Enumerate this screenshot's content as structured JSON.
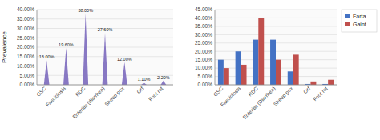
{
  "chart_data": [
    {
      "type": "bar",
      "categories": [
        "GSC",
        "Fasciolosis",
        "RDC",
        "Enteritis (diarrhea)",
        "Sheep pox",
        "Orf",
        "Foot rot"
      ],
      "values": [
        13.0,
        19.6,
        38.0,
        27.6,
        12.0,
        1.1,
        2.2
      ],
      "value_labels": [
        "13.00%",
        "19.60%",
        "38.00%",
        "27.60%",
        "12.00%",
        "1.10%",
        "2.20%"
      ],
      "data_labels": true,
      "color": "#8878C3",
      "ylabel": "Prevalence",
      "ylim": [
        0,
        40
      ],
      "yticks": [
        {
          "value": 0,
          "label": "0.00%"
        },
        {
          "value": 5,
          "label": "5.00%"
        },
        {
          "value": 10,
          "label": "10.00%"
        },
        {
          "value": 15,
          "label": "15.00%"
        },
        {
          "value": 20,
          "label": "20.00%"
        },
        {
          "value": 25,
          "label": "25.00%"
        },
        {
          "value": 30,
          "label": "30.00%"
        },
        {
          "value": 35,
          "label": "35.00%"
        },
        {
          "value": 40,
          "label": "40.00%"
        }
      ],
      "grid": true
    },
    {
      "type": "bar",
      "categories": [
        "GSC",
        "Fasciolosis",
        "RDC",
        "Enteritis (Diarrhea)",
        "Sheep pox",
        "Orf",
        "Foot rot"
      ],
      "series": [
        {
          "name": "Farta",
          "color": "#4472C4",
          "values": [
            15.0,
            20.0,
            27.0,
            27.0,
            8.0,
            0.5,
            0.5
          ]
        },
        {
          "name": "Gaint",
          "color": "#C0504D",
          "values": [
            10.0,
            12.0,
            40.0,
            15.0,
            18.0,
            2.0,
            3.0
          ]
        }
      ],
      "ylim": [
        0,
        45
      ],
      "yticks": [
        {
          "value": 0,
          "label": "0.00%"
        },
        {
          "value": 5,
          "label": "5.00%"
        },
        {
          "value": 10,
          "label": "10.00%"
        },
        {
          "value": 15,
          "label": "15.00%"
        },
        {
          "value": 20,
          "label": "20.00%"
        },
        {
          "value": 25,
          "label": "25.00%"
        },
        {
          "value": 30,
          "label": "30.00%"
        },
        {
          "value": 35,
          "label": "35.00%"
        },
        {
          "value": 40,
          "label": "40.00%"
        },
        {
          "value": 45,
          "label": "45.00%"
        }
      ],
      "grid": true,
      "legend": "right"
    }
  ]
}
